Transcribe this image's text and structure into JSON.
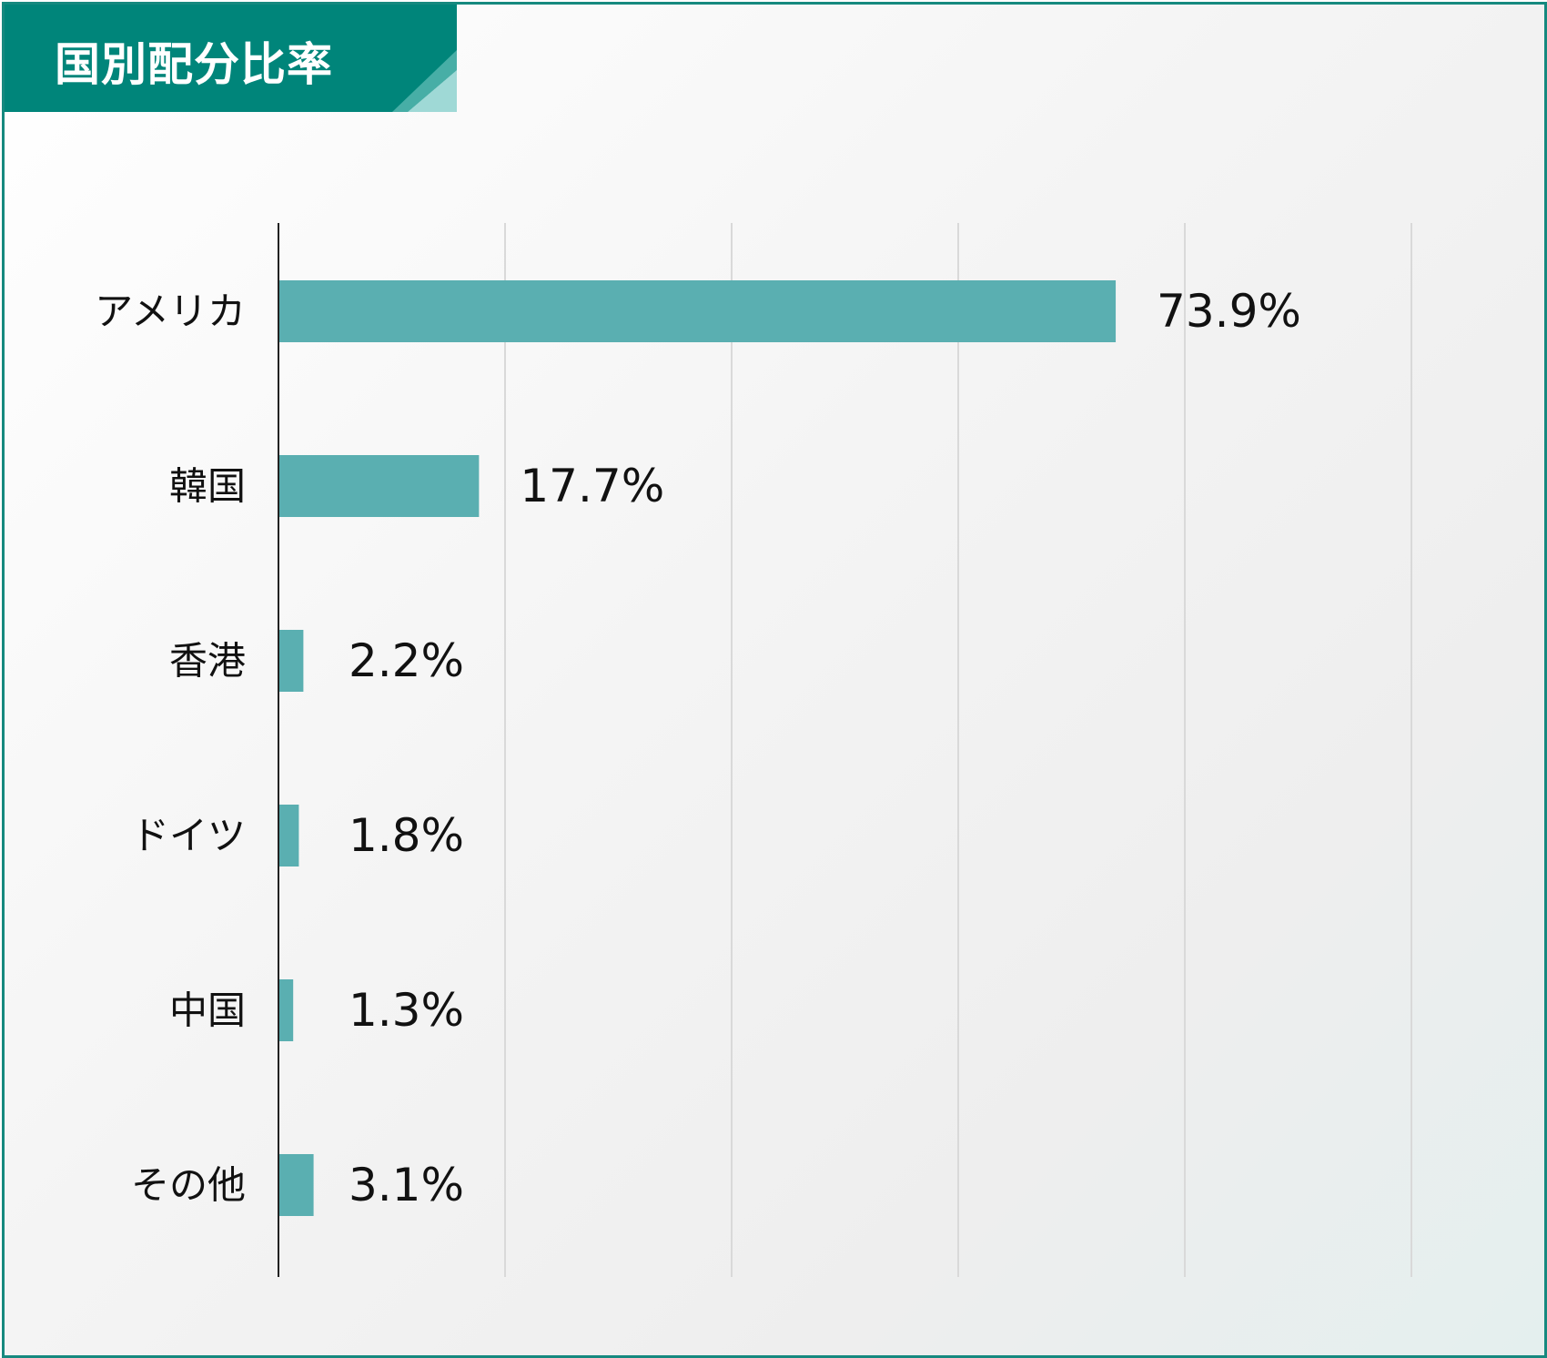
{
  "title": "国別配分比率",
  "colors": {
    "frame": "#16897f",
    "title_bg": "#00857a",
    "bar": "#5aafb1",
    "axis": "#222222",
    "grid": "#d9d9d9",
    "text": "#111111"
  },
  "chart_data": {
    "type": "bar",
    "orientation": "horizontal",
    "title": "国別配分比率",
    "categories": [
      "アメリカ",
      "韓国",
      "香港",
      "ドイツ",
      "中国",
      "その他"
    ],
    "values": [
      73.9,
      17.7,
      2.2,
      1.8,
      1.3,
      3.1
    ],
    "value_labels": [
      "73.9%",
      "17.7%",
      "2.2%",
      "1.8%",
      "1.3%",
      "3.1%"
    ],
    "unit": "%",
    "xlim": [
      0,
      100
    ],
    "gridlines_x": [
      20,
      40,
      60,
      80,
      100
    ],
    "grid": true,
    "legend": "none"
  }
}
